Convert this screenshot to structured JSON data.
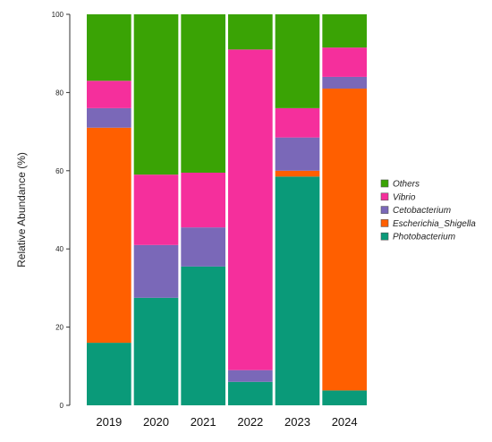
{
  "chart_data": {
    "type": "bar",
    "stacked": true,
    "title": "",
    "xlabel": "",
    "ylabel": "Relative Abundance (%)",
    "ylim": [
      0,
      100
    ],
    "yticks": [
      0,
      20,
      40,
      60,
      80,
      100
    ],
    "categories": [
      "2019",
      "2020",
      "2021",
      "2022",
      "2023",
      "2024"
    ],
    "series": [
      {
        "name": "Photobacterium",
        "color": "#0a9a79",
        "values": [
          16,
          27.5,
          35.5,
          6,
          58.5,
          3.8
        ]
      },
      {
        "name": "Escherichia_Shigella",
        "color": "#ff5f00",
        "values": [
          55,
          0,
          0,
          0,
          1.5,
          77.2
        ]
      },
      {
        "name": "Cetobacterium",
        "color": "#7a68b8",
        "values": [
          5,
          13.5,
          10,
          3,
          8.5,
          3
        ]
      },
      {
        "name": "Vibrio",
        "color": "#f52f9c",
        "values": [
          7,
          18,
          14,
          82,
          7.5,
          7.5
        ]
      },
      {
        "name": "Others",
        "color": "#3aa305",
        "values": [
          17,
          41,
          40.5,
          9,
          24,
          8.5
        ]
      }
    ],
    "legend": {
      "placement": "right",
      "order": [
        "Others",
        "Vibrio",
        "Cetobacterium",
        "Escherichia_Shigella",
        "Photobacterium"
      ]
    },
    "grid": false
  }
}
